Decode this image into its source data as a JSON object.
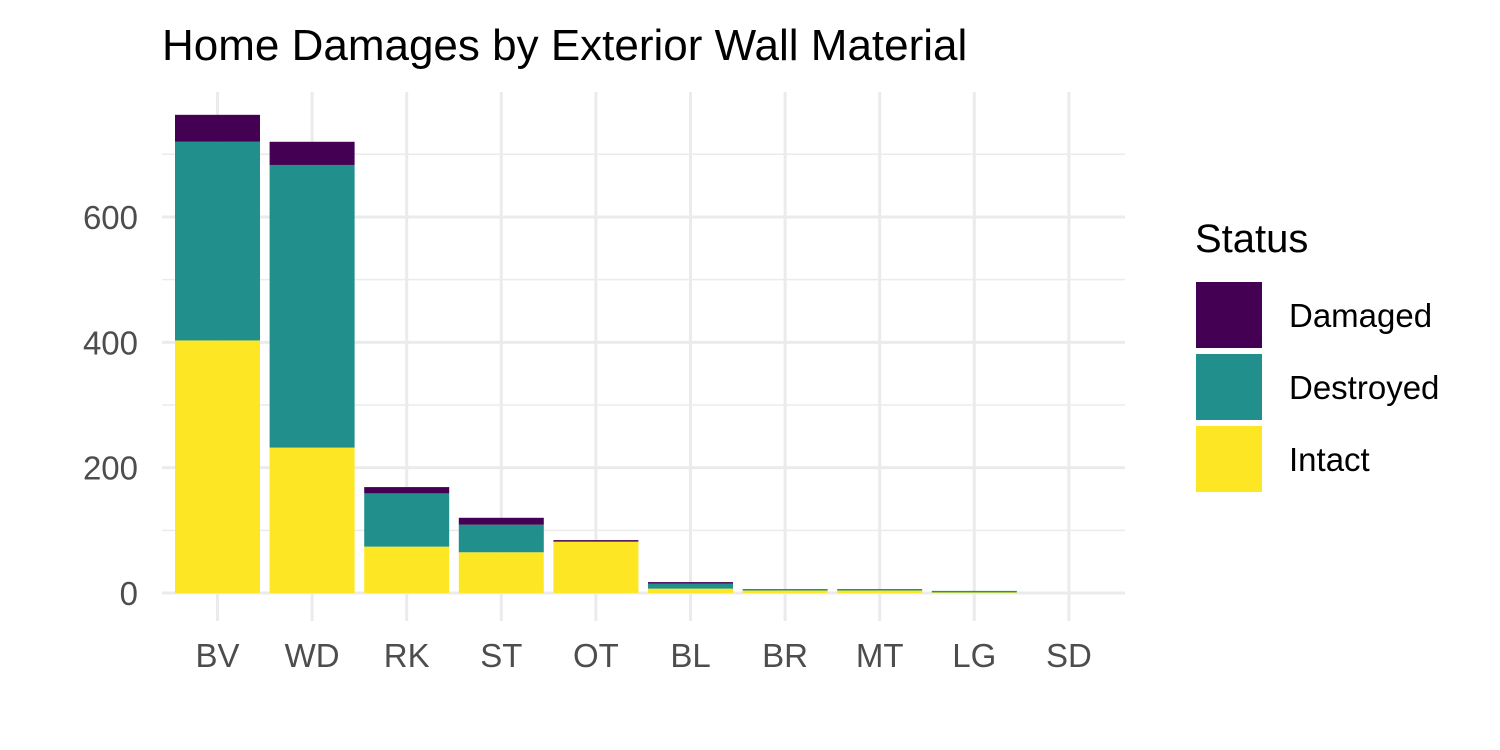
{
  "chart_data": {
    "type": "bar",
    "stacked": true,
    "title": "Home Damages by Exterior Wall Material",
    "xlabel": "",
    "ylabel": "",
    "categories": [
      "BV",
      "WD",
      "RK",
      "ST",
      "OT",
      "BL",
      "BR",
      "MT",
      "LG",
      "SD"
    ],
    "series": [
      {
        "name": "Intact",
        "color": "#FDE725",
        "values": [
          403,
          232,
          74,
          65,
          82,
          7,
          4,
          4,
          1,
          0
        ]
      },
      {
        "name": "Destroyed",
        "color": "#21908C",
        "values": [
          317,
          451,
          85,
          44,
          0,
          8,
          1,
          1,
          1,
          0
        ]
      },
      {
        "name": "Damaged",
        "color": "#440154",
        "values": [
          43,
          37,
          10,
          11,
          1,
          1,
          0,
          0,
          0,
          0
        ]
      }
    ],
    "ylim": [
      0,
      763
    ],
    "yticks": [
      0,
      200,
      400,
      600
    ],
    "ytick_labels": [
      "0",
      "200",
      "400",
      "600"
    ],
    "grid": true,
    "legend": {
      "title": "Status",
      "position": "right",
      "entries": [
        {
          "label": "Damaged",
          "color": "#440154"
        },
        {
          "label": "Destroyed",
          "color": "#21908C"
        },
        {
          "label": "Intact",
          "color": "#FDE725"
        }
      ]
    }
  }
}
